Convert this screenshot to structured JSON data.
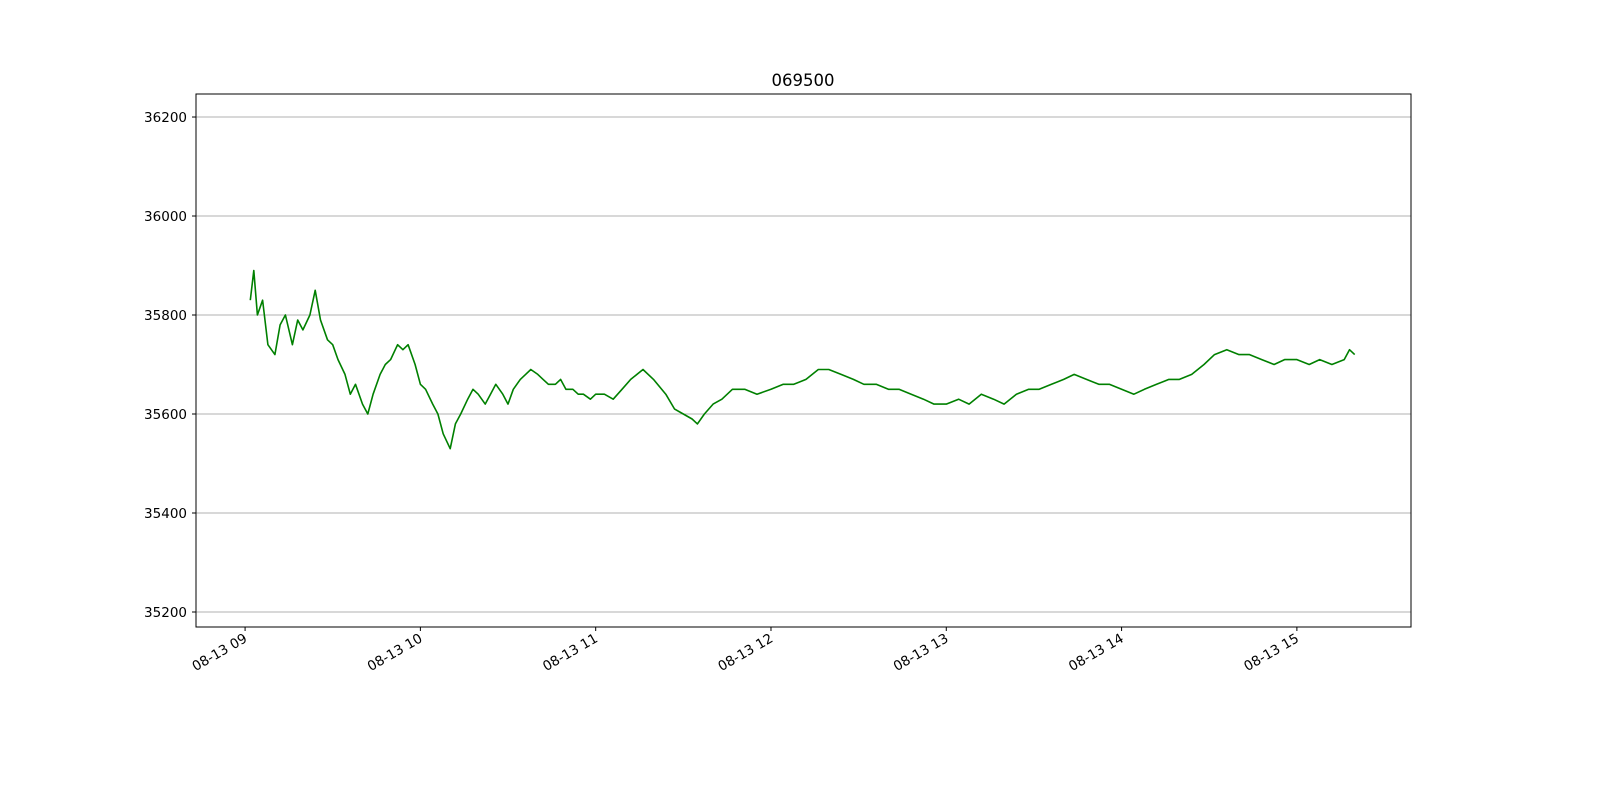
{
  "chart_data": {
    "type": "line",
    "title": "069500",
    "color": "#008000",
    "grid": true,
    "x": [
      9.03,
      9.05,
      9.07,
      9.1,
      9.13,
      9.17,
      9.2,
      9.23,
      9.27,
      9.3,
      9.33,
      9.37,
      9.4,
      9.43,
      9.47,
      9.5,
      9.53,
      9.57,
      9.6,
      9.63,
      9.67,
      9.7,
      9.73,
      9.77,
      9.8,
      9.83,
      9.87,
      9.9,
      9.93,
      9.97,
      10.0,
      10.03,
      10.07,
      10.1,
      10.13,
      10.17,
      10.2,
      10.23,
      10.27,
      10.3,
      10.33,
      10.37,
      10.4,
      10.43,
      10.47,
      10.5,
      10.53,
      10.57,
      10.6,
      10.63,
      10.67,
      10.7,
      10.73,
      10.77,
      10.8,
      10.83,
      10.87,
      10.9,
      10.93,
      10.97,
      11.0,
      11.05,
      11.1,
      11.15,
      11.2,
      11.27,
      11.33,
      11.4,
      11.45,
      11.5,
      11.55,
      11.58,
      11.62,
      11.67,
      11.72,
      11.78,
      11.85,
      11.92,
      12.0,
      12.07,
      12.13,
      12.2,
      12.27,
      12.33,
      12.4,
      12.47,
      12.53,
      12.6,
      12.67,
      12.73,
      12.8,
      12.87,
      12.93,
      13.0,
      13.07,
      13.13,
      13.2,
      13.27,
      13.33,
      13.4,
      13.47,
      13.53,
      13.6,
      13.67,
      13.73,
      13.8,
      13.87,
      13.93,
      14.0,
      14.07,
      14.13,
      14.2,
      14.27,
      14.33,
      14.4,
      14.47,
      14.53,
      14.6,
      14.67,
      14.73,
      14.8,
      14.87,
      14.93,
      15.0,
      15.07,
      15.13,
      15.2,
      15.27,
      15.3,
      15.33
    ],
    "values": [
      35830,
      35890,
      35800,
      35830,
      35740,
      35720,
      35780,
      35800,
      35740,
      35790,
      35770,
      35800,
      35850,
      35790,
      35750,
      35740,
      35710,
      35680,
      35640,
      35660,
      35620,
      35600,
      35640,
      35680,
      35700,
      35710,
      35740,
      35730,
      35740,
      35700,
      35660,
      35650,
      35620,
      35600,
      35560,
      35530,
      35580,
      35600,
      35630,
      35650,
      35640,
      35620,
      35640,
      35660,
      35640,
      35620,
      35650,
      35670,
      35680,
      35690,
      35680,
      35670,
      35660,
      35660,
      35670,
      35650,
      35650,
      35640,
      35640,
      35630,
      35640,
      35640,
      35630,
      35650,
      35670,
      35690,
      35670,
      35640,
      35610,
      35600,
      35590,
      35580,
      35600,
      35620,
      35630,
      35650,
      35650,
      35640,
      35650,
      35660,
      35660,
      35670,
      35690,
      35690,
      35680,
      35670,
      35660,
      35660,
      35650,
      35650,
      35640,
      35630,
      35620,
      35620,
      35630,
      35620,
      35640,
      35630,
      35620,
      35640,
      35650,
      35650,
      35660,
      35670,
      35680,
      35670,
      35660,
      35660,
      35650,
      35640,
      35650,
      35660,
      35670,
      35670,
      35680,
      35700,
      35720,
      35730,
      35720,
      35720,
      35710,
      35700,
      35710,
      35710,
      35700,
      35710,
      35700,
      35710,
      35730,
      35720
    ],
    "xlim": [
      8.72,
      15.651
    ],
    "xticks": [
      {
        "value": 9,
        "label": "08-13 09"
      },
      {
        "value": 10,
        "label": "08-13 10"
      },
      {
        "value": 11,
        "label": "08-13 11"
      },
      {
        "value": 12,
        "label": "08-13 12"
      },
      {
        "value": 13,
        "label": "08-13 13"
      },
      {
        "value": 14,
        "label": "08-13 14"
      },
      {
        "value": 15,
        "label": "08-13 15"
      }
    ],
    "ylim": [
      35169.7,
      36246.5
    ],
    "yticks": [
      35200,
      35400,
      35600,
      35800,
      36000,
      36200
    ]
  }
}
